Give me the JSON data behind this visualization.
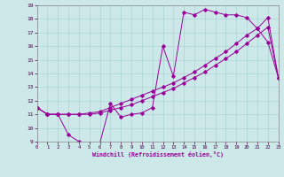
{
  "xlabel": "Windchill (Refroidissement éolien,°C)",
  "bg_color": "#cce8e8",
  "grid_color": "#aad4d4",
  "line_color": "#990099",
  "xlim": [
    0,
    23
  ],
  "ylim": [
    9,
    19
  ],
  "xticks": [
    0,
    1,
    2,
    3,
    4,
    5,
    6,
    7,
    8,
    9,
    10,
    11,
    12,
    13,
    14,
    15,
    16,
    17,
    18,
    19,
    20,
    21,
    22,
    23
  ],
  "yticks": [
    9,
    10,
    11,
    12,
    13,
    14,
    15,
    16,
    17,
    18,
    19
  ],
  "curve1_x": [
    0,
    1,
    2,
    3,
    4,
    5,
    6,
    7,
    8,
    9,
    10,
    11,
    12,
    13,
    14,
    15,
    16,
    17,
    18,
    19,
    20,
    21,
    22,
    23
  ],
  "curve1_y": [
    11.5,
    11.0,
    11.0,
    9.5,
    9.0,
    8.9,
    8.9,
    11.8,
    10.8,
    11.0,
    11.1,
    11.5,
    16.0,
    13.8,
    18.5,
    18.3,
    18.7,
    18.5,
    18.3,
    18.3,
    18.1,
    17.3,
    16.3,
    13.7
  ],
  "curve2_x": [
    0,
    1,
    2,
    3,
    4,
    5,
    6,
    7,
    8,
    9,
    10,
    11,
    12,
    13,
    14,
    15,
    16,
    17,
    18,
    19,
    20,
    21,
    22,
    23
  ],
  "curve2_y": [
    11.5,
    11.0,
    11.0,
    11.0,
    11.0,
    11.0,
    11.1,
    11.3,
    11.5,
    11.7,
    12.0,
    12.3,
    12.6,
    12.9,
    13.3,
    13.7,
    14.1,
    14.6,
    15.1,
    15.6,
    16.2,
    16.8,
    17.4,
    13.7
  ],
  "curve3_x": [
    0,
    1,
    2,
    3,
    4,
    5,
    6,
    7,
    8,
    9,
    10,
    11,
    12,
    13,
    14,
    15,
    16,
    17,
    18,
    19,
    20,
    21,
    22,
    23
  ],
  "curve3_y": [
    11.5,
    11.0,
    11.0,
    11.0,
    11.0,
    11.1,
    11.2,
    11.5,
    11.8,
    12.1,
    12.4,
    12.7,
    13.0,
    13.3,
    13.7,
    14.1,
    14.6,
    15.1,
    15.6,
    16.2,
    16.8,
    17.3,
    18.1,
    13.7
  ]
}
